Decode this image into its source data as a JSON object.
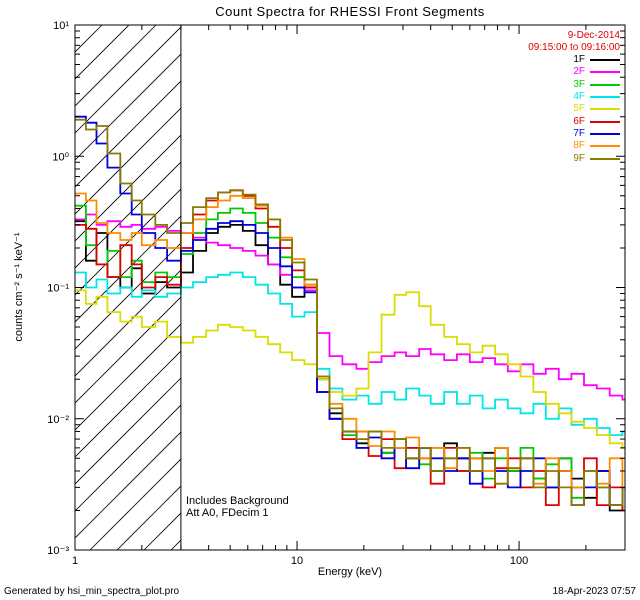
{
  "window": {
    "bg": "#ffffff"
  },
  "legend": {
    "date_line1": "9-Dec-2014",
    "date_line2": "09:15:00 to 09:16:00",
    "date_color": "#dd0000"
  },
  "annotations": [
    "Includes Background",
    "Att A0, FDecim 1"
  ],
  "footer": {
    "left": "Generated by hsi_min_spectra_plot.pro",
    "right": "18-Apr-2023 07:57"
  },
  "chart_data": {
    "type": "line",
    "title": "Count Spectra for RHESSI Front Segments",
    "xlabel": "Energy (keV)",
    "ylabel": "counts cm⁻² s⁻¹ keV⁻¹",
    "xscale": "log",
    "yscale": "log",
    "xlim": [
      1,
      300
    ],
    "ylim": [
      0.001,
      10
    ],
    "grid": false,
    "legend_position": "top-right",
    "hatch_region": {
      "xmin": 1,
      "xmax": 3
    },
    "x_ticks": [
      {
        "v": 1,
        "label": "1"
      },
      {
        "v": 10,
        "label": "10"
      },
      {
        "v": 100,
        "label": "100"
      }
    ],
    "y_ticks": [
      {
        "v": 10,
        "label": "10¹"
      },
      {
        "v": 1,
        "label": "10⁰"
      },
      {
        "v": 0.1,
        "label": "10⁻¹"
      },
      {
        "v": 0.01,
        "label": "10⁻²"
      },
      {
        "v": 0.001,
        "label": "10⁻³"
      }
    ],
    "x_bins": [
      1.0,
      1.12,
      1.25,
      1.4,
      1.6,
      1.8,
      2.0,
      2.3,
      2.6,
      3.0,
      3.4,
      3.9,
      4.4,
      5.0,
      5.7,
      6.5,
      7.4,
      8.4,
      9.5,
      10.8,
      12.3,
      14,
      16,
      18.5,
      21,
      24,
      27.5,
      31,
      35.5,
      40,
      46,
      52.5,
      60,
      68.5,
      78,
      89,
      101.5,
      116,
      132,
      151,
      172,
      196,
      224,
      256,
      292
    ],
    "series": [
      {
        "name": "1F",
        "color": "#000000",
        "values": [
          0.32,
          0.16,
          0.26,
          0.12,
          0.1,
          0.14,
          0.09,
          0.11,
          0.1,
          0.13,
          0.19,
          0.26,
          0.29,
          0.3,
          0.27,
          0.21,
          0.15,
          0.105,
          0.085,
          0.1,
          0.02,
          0.011,
          0.008,
          0.0065,
          0.008,
          0.0055,
          0.007,
          0.005,
          0.006,
          0.004,
          0.0065,
          0.005,
          0.004,
          0.0055,
          0.006,
          0.004,
          0.005,
          0.0035,
          0.003,
          0.005,
          0.0035,
          0.0025,
          0.004,
          0.002,
          0.003
        ]
      },
      {
        "name": "2F",
        "color": "#ff00ff",
        "values": [
          0.33,
          0.36,
          0.3,
          0.32,
          0.29,
          0.3,
          0.28,
          0.29,
          0.27,
          0.26,
          0.24,
          0.22,
          0.21,
          0.2,
          0.19,
          0.175,
          0.15,
          0.125,
          0.1,
          0.095,
          0.045,
          0.03,
          0.026,
          0.024,
          0.027,
          0.03,
          0.032,
          0.03,
          0.034,
          0.031,
          0.028,
          0.031,
          0.027,
          0.029,
          0.026,
          0.023,
          0.026,
          0.022,
          0.024,
          0.02,
          0.022,
          0.018,
          0.017,
          0.015,
          0.014
        ]
      },
      {
        "name": "3F",
        "color": "#00cc00",
        "values": [
          0.42,
          0.21,
          0.15,
          0.19,
          0.12,
          0.16,
          0.11,
          0.13,
          0.12,
          0.18,
          0.26,
          0.33,
          0.37,
          0.4,
          0.37,
          0.31,
          0.24,
          0.17,
          0.12,
          0.105,
          0.016,
          0.01,
          0.0075,
          0.006,
          0.008,
          0.0055,
          0.007,
          0.006,
          0.0045,
          0.006,
          0.005,
          0.004,
          0.0055,
          0.0035,
          0.005,
          0.004,
          0.006,
          0.0035,
          0.0045,
          0.005,
          0.0025,
          0.004,
          0.003,
          0.0022,
          0.003
        ]
      },
      {
        "name": "4F",
        "color": "#00e5e5",
        "values": [
          0.13,
          0.1,
          0.115,
          0.09,
          0.1,
          0.085,
          0.095,
          0.085,
          0.09,
          0.1,
          0.11,
          0.12,
          0.125,
          0.13,
          0.12,
          0.105,
          0.09,
          0.075,
          0.06,
          0.065,
          0.024,
          0.017,
          0.014,
          0.015,
          0.013,
          0.016,
          0.014,
          0.017,
          0.015,
          0.013,
          0.016,
          0.013,
          0.015,
          0.012,
          0.014,
          0.012,
          0.011,
          0.013,
          0.01,
          0.012,
          0.009,
          0.01,
          0.0085,
          0.0075,
          0.008
        ]
      },
      {
        "name": "5F",
        "color": "#dcdc00",
        "values": [
          0.095,
          0.075,
          0.085,
          0.065,
          0.055,
          0.06,
          0.05,
          0.055,
          0.042,
          0.038,
          0.042,
          0.047,
          0.052,
          0.05,
          0.047,
          0.042,
          0.037,
          0.032,
          0.028,
          0.026,
          0.02,
          0.016,
          0.015,
          0.017,
          0.032,
          0.062,
          0.088,
          0.092,
          0.072,
          0.052,
          0.042,
          0.037,
          0.032,
          0.036,
          0.031,
          0.026,
          0.021,
          0.016,
          0.013,
          0.011,
          0.0095,
          0.0085,
          0.0075,
          0.0065,
          0.006
        ]
      },
      {
        "name": "6F",
        "color": "#dd0000",
        "values": [
          0.3,
          0.28,
          0.15,
          0.12,
          0.21,
          0.15,
          0.1,
          0.12,
          0.105,
          0.2,
          0.36,
          0.46,
          0.53,
          0.55,
          0.5,
          0.4,
          0.29,
          0.2,
          0.135,
          0.1,
          0.016,
          0.01,
          0.007,
          0.008,
          0.0052,
          0.007,
          0.0042,
          0.006,
          0.005,
          0.0032,
          0.006,
          0.004,
          0.005,
          0.003,
          0.0042,
          0.005,
          0.003,
          0.004,
          0.0022,
          0.004,
          0.003,
          0.005,
          0.0022,
          0.003,
          0.002
        ]
      },
      {
        "name": "7F",
        "color": "#0000dd",
        "values": [
          2.0,
          1.8,
          1.25,
          0.82,
          0.52,
          0.36,
          0.26,
          0.2,
          0.16,
          0.19,
          0.23,
          0.28,
          0.31,
          0.32,
          0.3,
          0.26,
          0.2,
          0.145,
          0.1,
          0.092,
          0.016,
          0.01,
          0.008,
          0.006,
          0.0072,
          0.005,
          0.006,
          0.0042,
          0.006,
          0.005,
          0.004,
          0.005,
          0.0032,
          0.005,
          0.004,
          0.003,
          0.004,
          0.005,
          0.003,
          0.004,
          0.0022,
          0.003,
          0.004,
          0.0022,
          0.003
        ]
      },
      {
        "name": "8F",
        "color": "#ff8c00",
        "values": [
          0.52,
          0.46,
          0.31,
          0.26,
          0.23,
          0.26,
          0.21,
          0.23,
          0.2,
          0.26,
          0.33,
          0.41,
          0.46,
          0.5,
          0.48,
          0.42,
          0.33,
          0.24,
          0.165,
          0.105,
          0.021,
          0.013,
          0.01,
          0.008,
          0.0062,
          0.008,
          0.006,
          0.0072,
          0.005,
          0.006,
          0.0042,
          0.006,
          0.005,
          0.004,
          0.006,
          0.0042,
          0.005,
          0.0032,
          0.005,
          0.004,
          0.003,
          0.004,
          0.0032,
          0.005,
          0.003
        ]
      },
      {
        "name": "9F",
        "color": "#8a7a00",
        "values": [
          1.9,
          1.6,
          1.7,
          1.05,
          0.62,
          0.46,
          0.36,
          0.3,
          0.26,
          0.31,
          0.41,
          0.48,
          0.53,
          0.55,
          0.51,
          0.43,
          0.33,
          0.23,
          0.155,
          0.115,
          0.021,
          0.012,
          0.008,
          0.007,
          0.008,
          0.006,
          0.007,
          0.005,
          0.006,
          0.004,
          0.005,
          0.006,
          0.004,
          0.005,
          0.0032,
          0.0042,
          0.005,
          0.003,
          0.004,
          0.003,
          0.0022,
          0.004,
          0.003,
          0.0022,
          0.003
        ]
      }
    ]
  }
}
